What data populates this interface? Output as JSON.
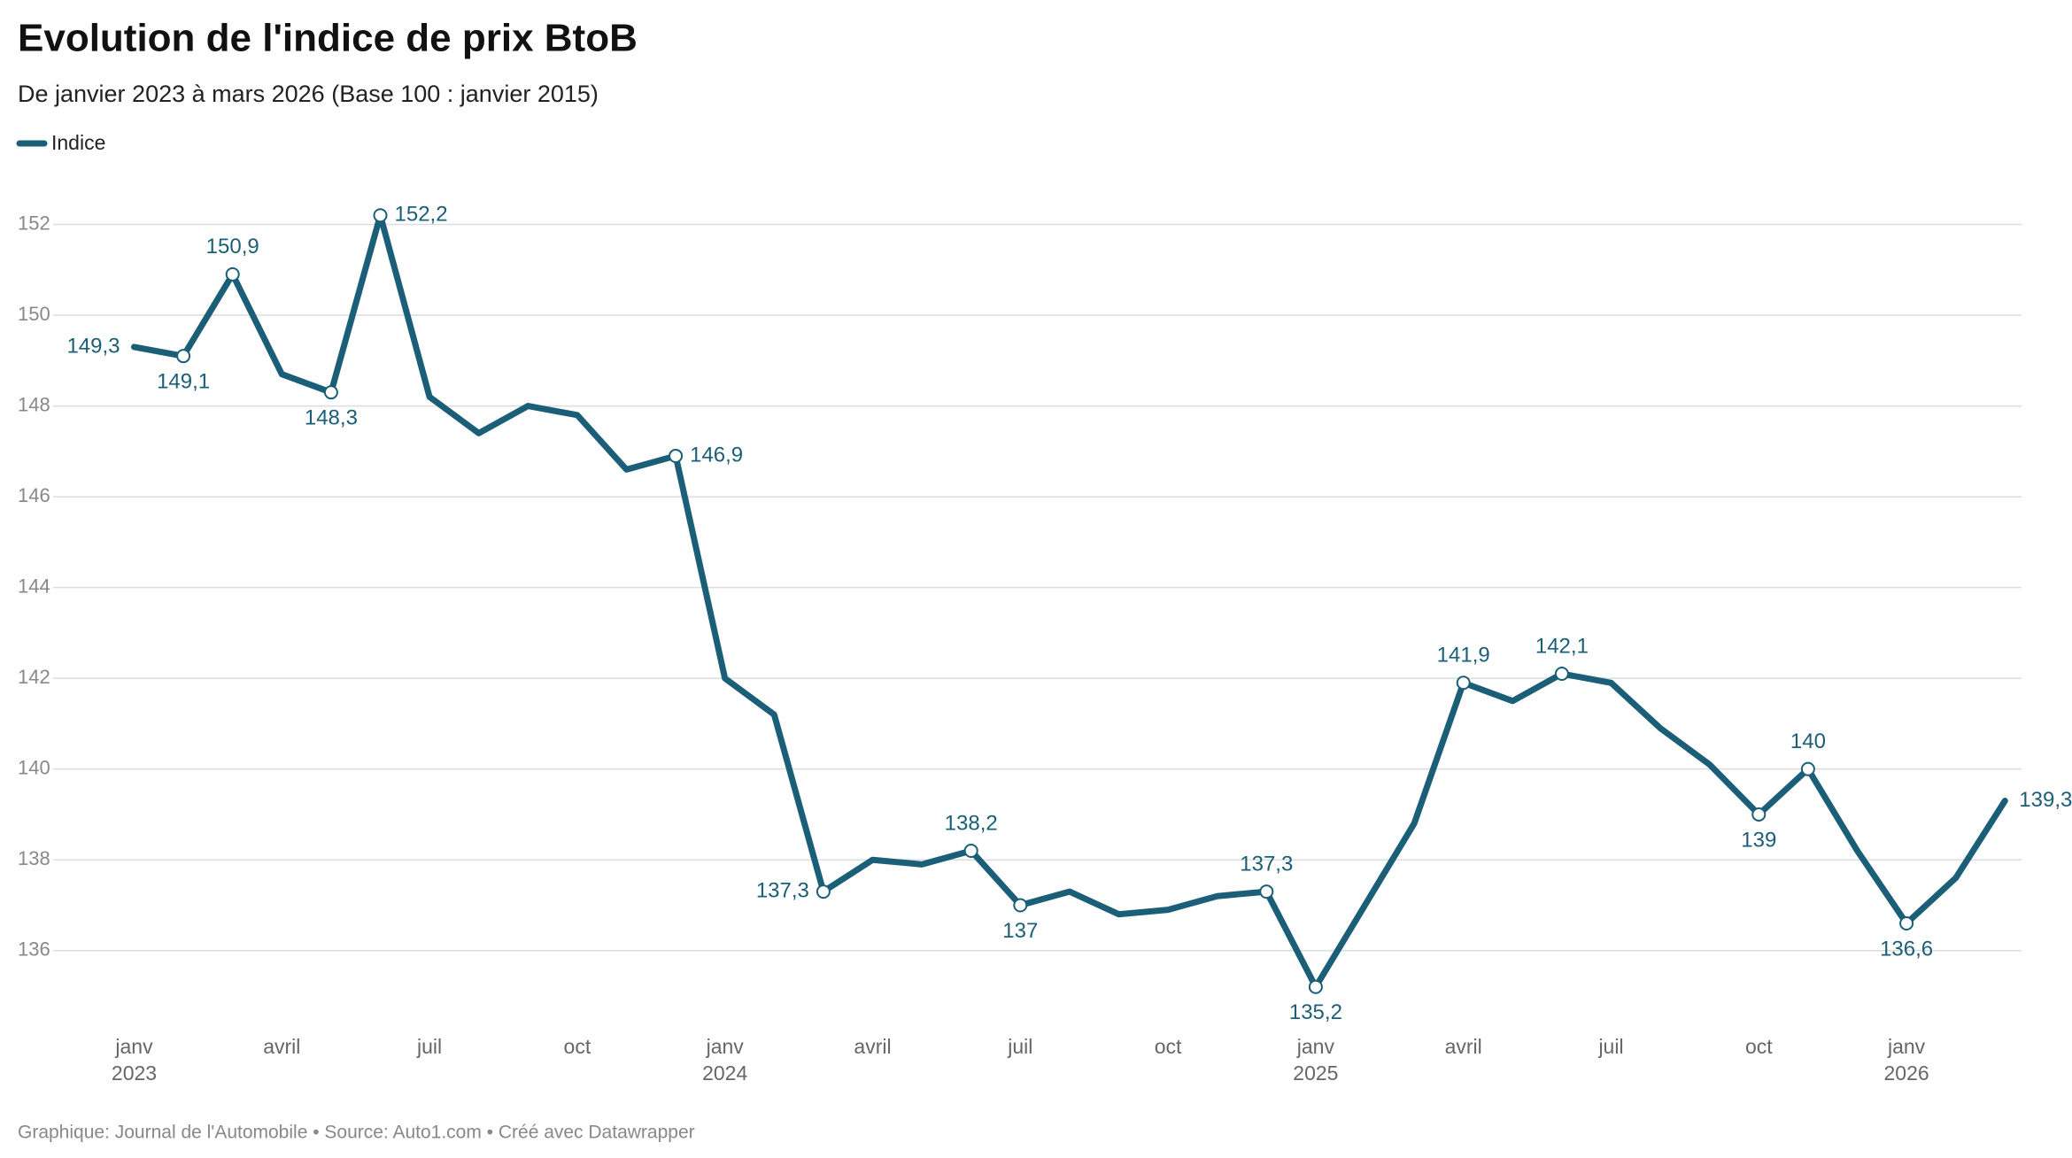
{
  "chart_data": {
    "type": "line",
    "title": "Evolution de l'indice de prix BtoB",
    "subtitle": "De janvier 2023 à mars 2026 (Base 100 : janvier 2015)",
    "footer": "Graphique: Journal de l'Automobile • Source: Auto1.com • Créé avec Datawrapper",
    "categories": [
      "janv 2023",
      null,
      null,
      "avril",
      null,
      null,
      "juil",
      null,
      null,
      "oct",
      null,
      null,
      "janv 2024",
      null,
      null,
      "avril",
      null,
      null,
      "juil",
      null,
      null,
      "oct",
      null,
      null,
      "janv 2025",
      null,
      null,
      "avril",
      null,
      null,
      "juil",
      null,
      null,
      "oct",
      null,
      null,
      "janv 2026",
      null,
      null
    ],
    "series": [
      {
        "name": "Indice",
        "color": "#1b5e78",
        "values": [
          149.3,
          149.1,
          150.9,
          148.7,
          148.3,
          152.2,
          148.2,
          147.4,
          148.0,
          147.8,
          146.6,
          146.9,
          142.0,
          141.2,
          137.3,
          138.0,
          137.9,
          138.2,
          137.0,
          137.3,
          136.8,
          136.9,
          137.2,
          137.3,
          135.2,
          137.0,
          138.8,
          141.9,
          141.5,
          142.1,
          141.9,
          140.9,
          140.1,
          139.0,
          140.0,
          138.2,
          136.6,
          137.6,
          139.3
        ],
        "value_labels": [
          "149,3",
          "149,1",
          "150,9",
          null,
          "148,3",
          "152,2",
          null,
          null,
          null,
          null,
          null,
          "146,9",
          null,
          null,
          "137,3",
          null,
          null,
          "138,2",
          "137",
          null,
          null,
          null,
          null,
          "137,3",
          "135,2",
          null,
          null,
          "141,9",
          null,
          "142,1",
          null,
          null,
          null,
          "139",
          "140",
          null,
          "136,6",
          null,
          "139,3"
        ]
      }
    ],
    "ylim": [
      135,
      152.4
    ],
    "yticks": [
      136,
      138,
      140,
      142,
      144,
      146,
      148,
      150,
      152
    ],
    "grid": true
  }
}
